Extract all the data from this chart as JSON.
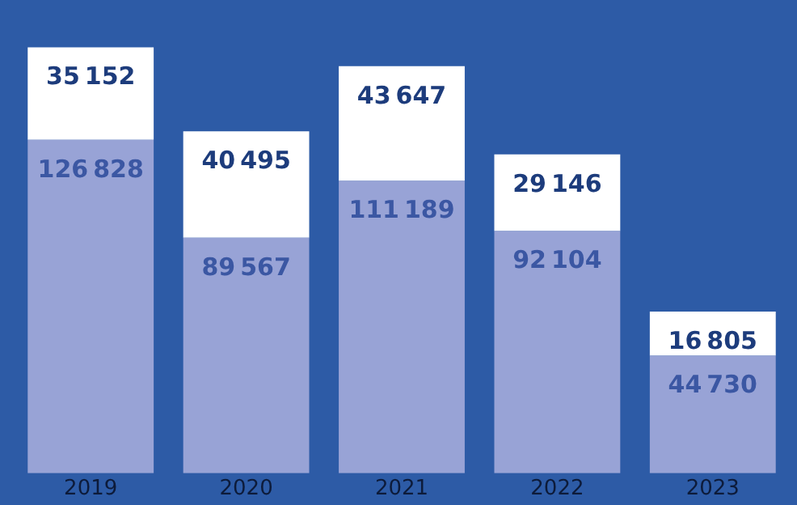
{
  "chart_data": {
    "type": "bar",
    "stacked": true,
    "categories": [
      "2019",
      "2020",
      "2021",
      "2022",
      "2023"
    ],
    "series": [
      {
        "color": "#98a3d6",
        "values": [
          126828,
          89567,
          111189,
          92104,
          44730
        ]
      },
      {
        "color": "#ffffff",
        "values": [
          35152,
          40495,
          43647,
          29146,
          16805
        ]
      }
    ],
    "data_labels": true,
    "legend": false,
    "grid": false
  }
}
